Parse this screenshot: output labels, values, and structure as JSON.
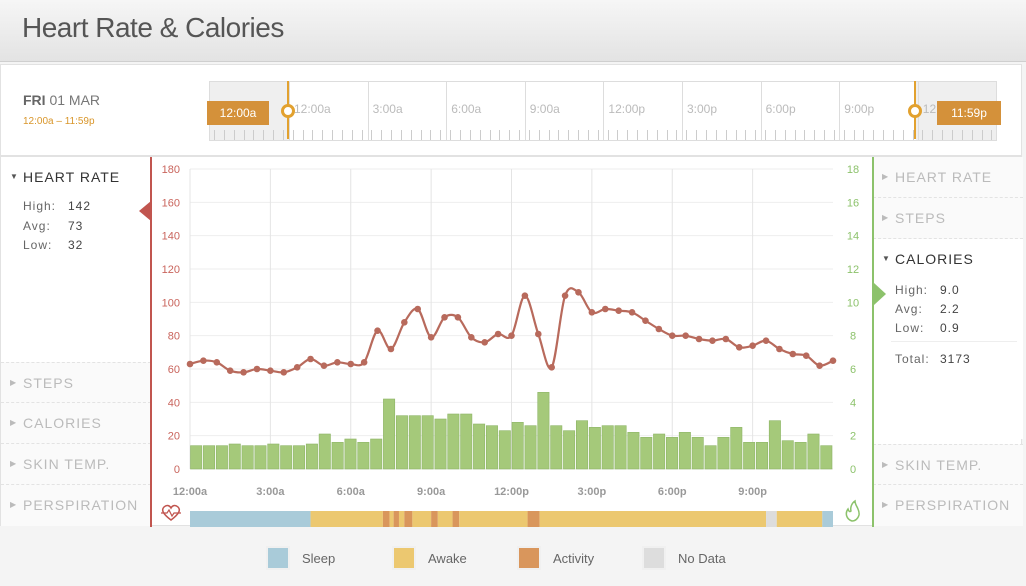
{
  "page": {
    "title": "Heart Rate & Calories"
  },
  "date": {
    "day": "FRI",
    "date": "01 MAR",
    "range": "12:00a – 11:59p"
  },
  "timeline": {
    "labels": [
      "12:00a",
      "3:00a",
      "6:00a",
      "9:00a",
      "12:00p",
      "3:00p",
      "6:00p",
      "9:00p",
      "12:"
    ],
    "start_tag": "12:00a",
    "end_tag": "11:59p"
  },
  "left_panel": {
    "heart_rate": {
      "title": "HEART RATE",
      "stats": [
        {
          "label": "High:",
          "value": "142"
        },
        {
          "label": "Avg:",
          "value": "73"
        },
        {
          "label": "Low:",
          "value": "32"
        }
      ]
    },
    "collapsed": [
      "STEPS",
      "CALORIES",
      "SKIN TEMP.",
      "PERSPIRATION"
    ]
  },
  "right_panel": {
    "collapsed_top": [
      "HEART RATE",
      "STEPS"
    ],
    "calories": {
      "title": "CALORIES",
      "stats": [
        {
          "label": "High:",
          "value": "9.0"
        },
        {
          "label": "Avg:",
          "value": "2.2"
        },
        {
          "label": "Low:",
          "value": "0.9"
        }
      ],
      "total_label": "Total:",
      "total_value": "3173"
    },
    "collapsed_bottom": [
      "SKIN TEMP.",
      "PERSPIRATION"
    ]
  },
  "legend": [
    {
      "label": "Sleep",
      "color": "#a9cbd9"
    },
    {
      "label": "Awake",
      "color": "#ecc870"
    },
    {
      "label": "Activity",
      "color": "#d9965c"
    },
    {
      "label": "No Data",
      "color": "#dddddd"
    }
  ],
  "colors": {
    "heart_rate": "#b86a5c",
    "calories": "#a5c97a",
    "accent": "#e2a12f",
    "red_axis": "#c1554f",
    "green_axis": "#8cc26b"
  },
  "chart_data": {
    "type": "line",
    "x_tick_labels": [
      "12:00a",
      "3:00a",
      "6:00a",
      "9:00a",
      "12:00p",
      "3:00p",
      "6:00p",
      "9:00p"
    ],
    "x_range_hours": [
      0,
      24
    ],
    "left_axis": {
      "ylim": [
        0,
        180
      ],
      "ticks": [
        0,
        20,
        40,
        60,
        80,
        100,
        120,
        140,
        160,
        180
      ]
    },
    "right_axis": {
      "ylim": [
        0,
        18
      ],
      "ticks": [
        0,
        2,
        4,
        6,
        8,
        10,
        12,
        14,
        16,
        18
      ]
    },
    "series": [
      {
        "type": "line",
        "axis": "left",
        "x_hours": [
          0,
          0.5,
          1,
          1.5,
          2,
          2.5,
          3,
          3.5,
          4,
          4.5,
          5,
          5.5,
          6,
          6.5,
          7,
          7.5,
          8,
          8.5,
          9,
          9.5,
          10,
          10.5,
          11,
          11.5,
          12,
          12.5,
          13,
          13.5,
          14,
          14.5,
          15,
          15.5,
          16,
          16.5,
          17,
          17.5,
          18,
          18.5,
          19,
          19.5,
          20,
          20.5,
          21,
          21.5,
          22,
          22.5,
          23,
          23.5,
          24
        ],
        "values": [
          63,
          65,
          64,
          59,
          58,
          60,
          59,
          58,
          61,
          66,
          62,
          64,
          63,
          64,
          83,
          72,
          88,
          96,
          79,
          91,
          91,
          79,
          76,
          81,
          80,
          104,
          81,
          61,
          104,
          106,
          94,
          96,
          95,
          94,
          89,
          84,
          80,
          80,
          78,
          77,
          78,
          73,
          74,
          77,
          72,
          69,
          68,
          62,
          65
        ]
      },
      {
        "type": "bar",
        "axis": "right",
        "values": [
          1.4,
          1.4,
          1.4,
          1.5,
          1.4,
          1.4,
          1.5,
          1.4,
          1.4,
          1.5,
          2.1,
          1.6,
          1.8,
          1.6,
          1.8,
          4.2,
          3.2,
          3.2,
          3.2,
          3.0,
          3.3,
          3.3,
          2.7,
          2.6,
          2.3,
          2.8,
          2.6,
          4.6,
          2.6,
          2.3,
          2.9,
          2.5,
          2.6,
          2.6,
          2.2,
          1.9,
          2.1,
          1.9,
          2.2,
          1.9,
          1.4,
          1.9,
          2.5,
          1.6,
          1.6,
          2.9,
          1.7,
          1.6,
          2.1,
          1.4
        ]
      }
    ],
    "activity_strip": [
      {
        "state": "Sleep",
        "from_hour": 0,
        "to_hour": 4.5
      },
      {
        "state": "Awake",
        "from_hour": 4.5,
        "to_hour": 7.2
      },
      {
        "state": "Activity",
        "from_hour": 7.2,
        "to_hour": 7.45
      },
      {
        "state": "Awake",
        "from_hour": 7.45,
        "to_hour": 7.6
      },
      {
        "state": "Activity",
        "from_hour": 7.6,
        "to_hour": 7.8
      },
      {
        "state": "Awake",
        "from_hour": 7.8,
        "to_hour": 8.0
      },
      {
        "state": "Activity",
        "from_hour": 8.0,
        "to_hour": 8.3
      },
      {
        "state": "Awake",
        "from_hour": 8.3,
        "to_hour": 9.0
      },
      {
        "state": "Activity",
        "from_hour": 9.0,
        "to_hour": 9.25
      },
      {
        "state": "Awake",
        "from_hour": 9.25,
        "to_hour": 9.8
      },
      {
        "state": "Activity",
        "from_hour": 9.8,
        "to_hour": 10.05
      },
      {
        "state": "Awake",
        "from_hour": 10.05,
        "to_hour": 12.6
      },
      {
        "state": "Activity",
        "from_hour": 12.6,
        "to_hour": 13.05
      },
      {
        "state": "Awake",
        "from_hour": 13.05,
        "to_hour": 21.5
      },
      {
        "state": "No Data",
        "from_hour": 21.5,
        "to_hour": 21.9
      },
      {
        "state": "Awake",
        "from_hour": 21.9,
        "to_hour": 23.6
      },
      {
        "state": "Sleep",
        "from_hour": 23.6,
        "to_hour": 24
      }
    ]
  }
}
